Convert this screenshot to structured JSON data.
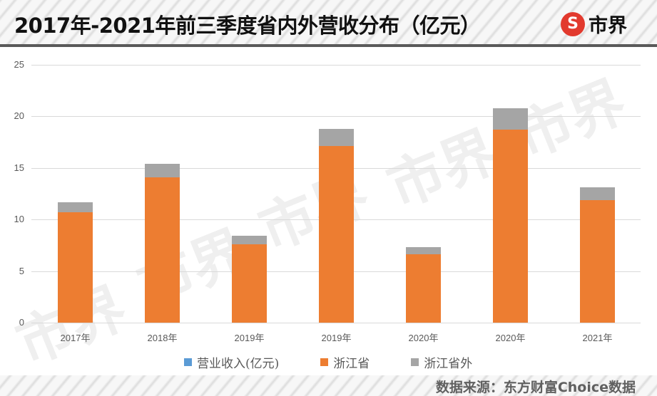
{
  "header": {
    "title": "2017年-2021年前三季度省内外营收分布（亿元）",
    "logo_mark": "S",
    "logo_text": "市界"
  },
  "watermark": "市界",
  "colors": {
    "series_total": "#5b9bd5",
    "series_zhejiang": "#ed7d31",
    "series_outside": "#a5a5a5",
    "gridline": "#d9d9d9",
    "axis_text": "#595959"
  },
  "chart_data": {
    "type": "bar",
    "stacked": true,
    "title": "2017年-2021年前三季度省内外营收分布（亿元）",
    "xlabel": "",
    "ylabel": "",
    "ylim": [
      0,
      25
    ],
    "yticks": [
      0,
      5,
      10,
      15,
      20,
      25
    ],
    "grid": true,
    "legend_position": "bottom",
    "categories": [
      "2017年",
      "2018年",
      "2019年",
      "2019年",
      "2020年",
      "2020年",
      "2021年"
    ],
    "series": [
      {
        "name": "营业收入(亿元)",
        "color": "#5b9bd5",
        "values": [
          0,
          0,
          0,
          0,
          0,
          0,
          0
        ]
      },
      {
        "name": "浙江省",
        "color": "#ed7d31",
        "values": [
          10.7,
          14.1,
          7.6,
          17.1,
          6.6,
          18.7,
          11.9
        ]
      },
      {
        "name": "浙江省外",
        "color": "#a5a5a5",
        "values": [
          1.0,
          1.3,
          0.8,
          1.7,
          0.75,
          2.1,
          1.2
        ]
      }
    ]
  },
  "footer": {
    "source": "数据来源：东方财富Choice数据"
  }
}
